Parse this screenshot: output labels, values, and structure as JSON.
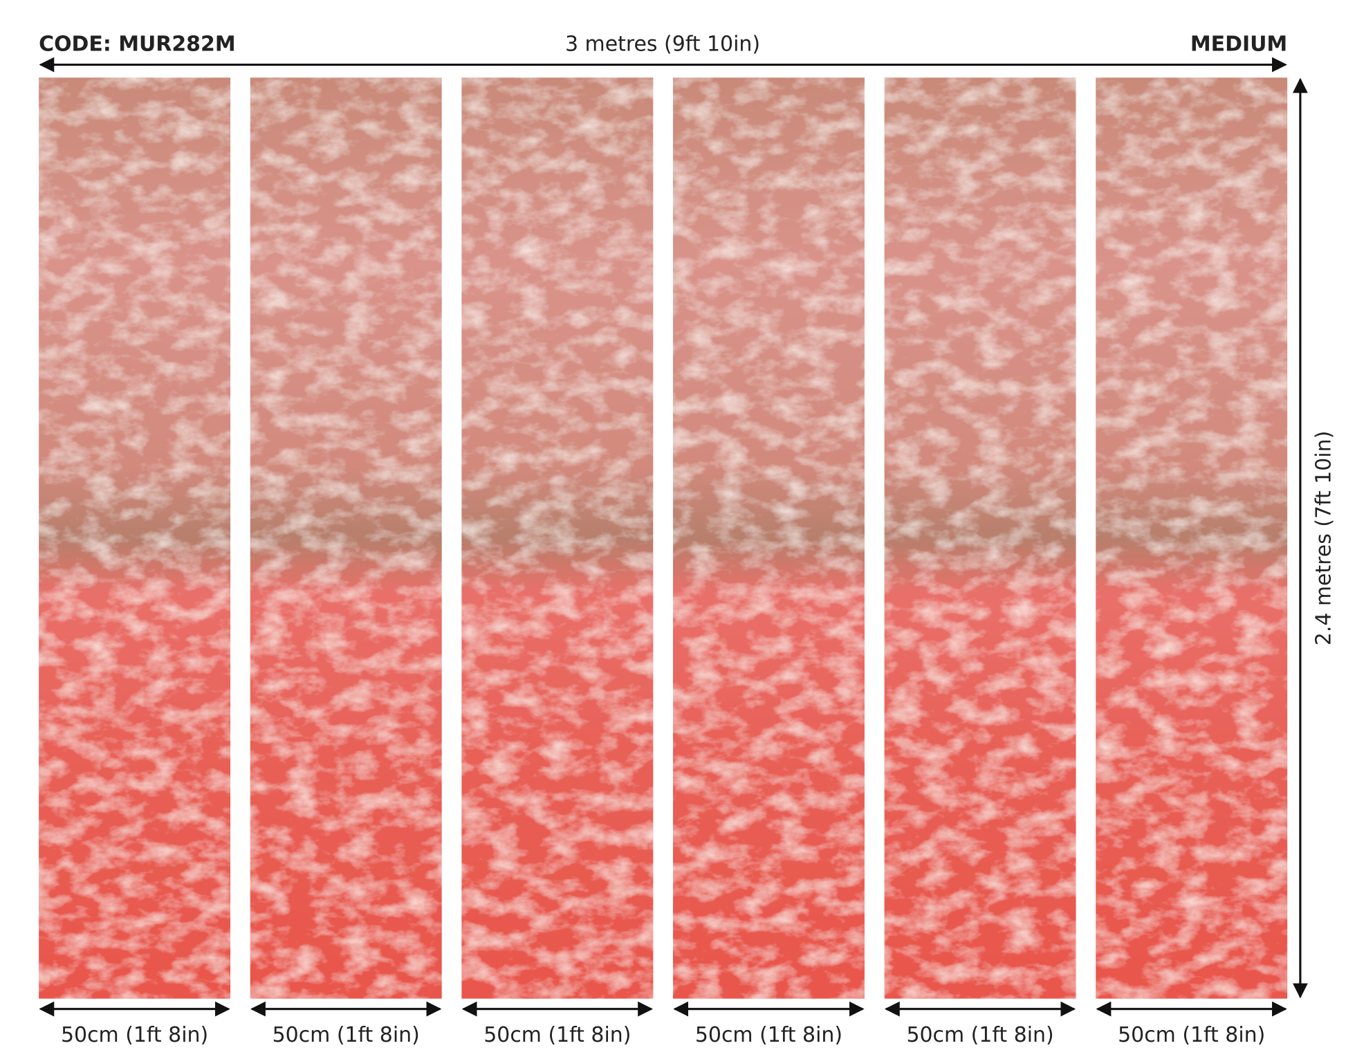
{
  "header": {
    "code": "CODE: MUR282M",
    "width_label": "3 metres (9ft 10in)",
    "size": "MEDIUM"
  },
  "height_label": "2.4 metres (7ft 10in)",
  "panels": [
    "50cm (1ft 8in)",
    "50cm (1ft 8in)",
    "50cm (1ft 8in)",
    "50cm (1ft 8in)",
    "50cm (1ft 8in)",
    "50cm (1ft 8in)"
  ]
}
